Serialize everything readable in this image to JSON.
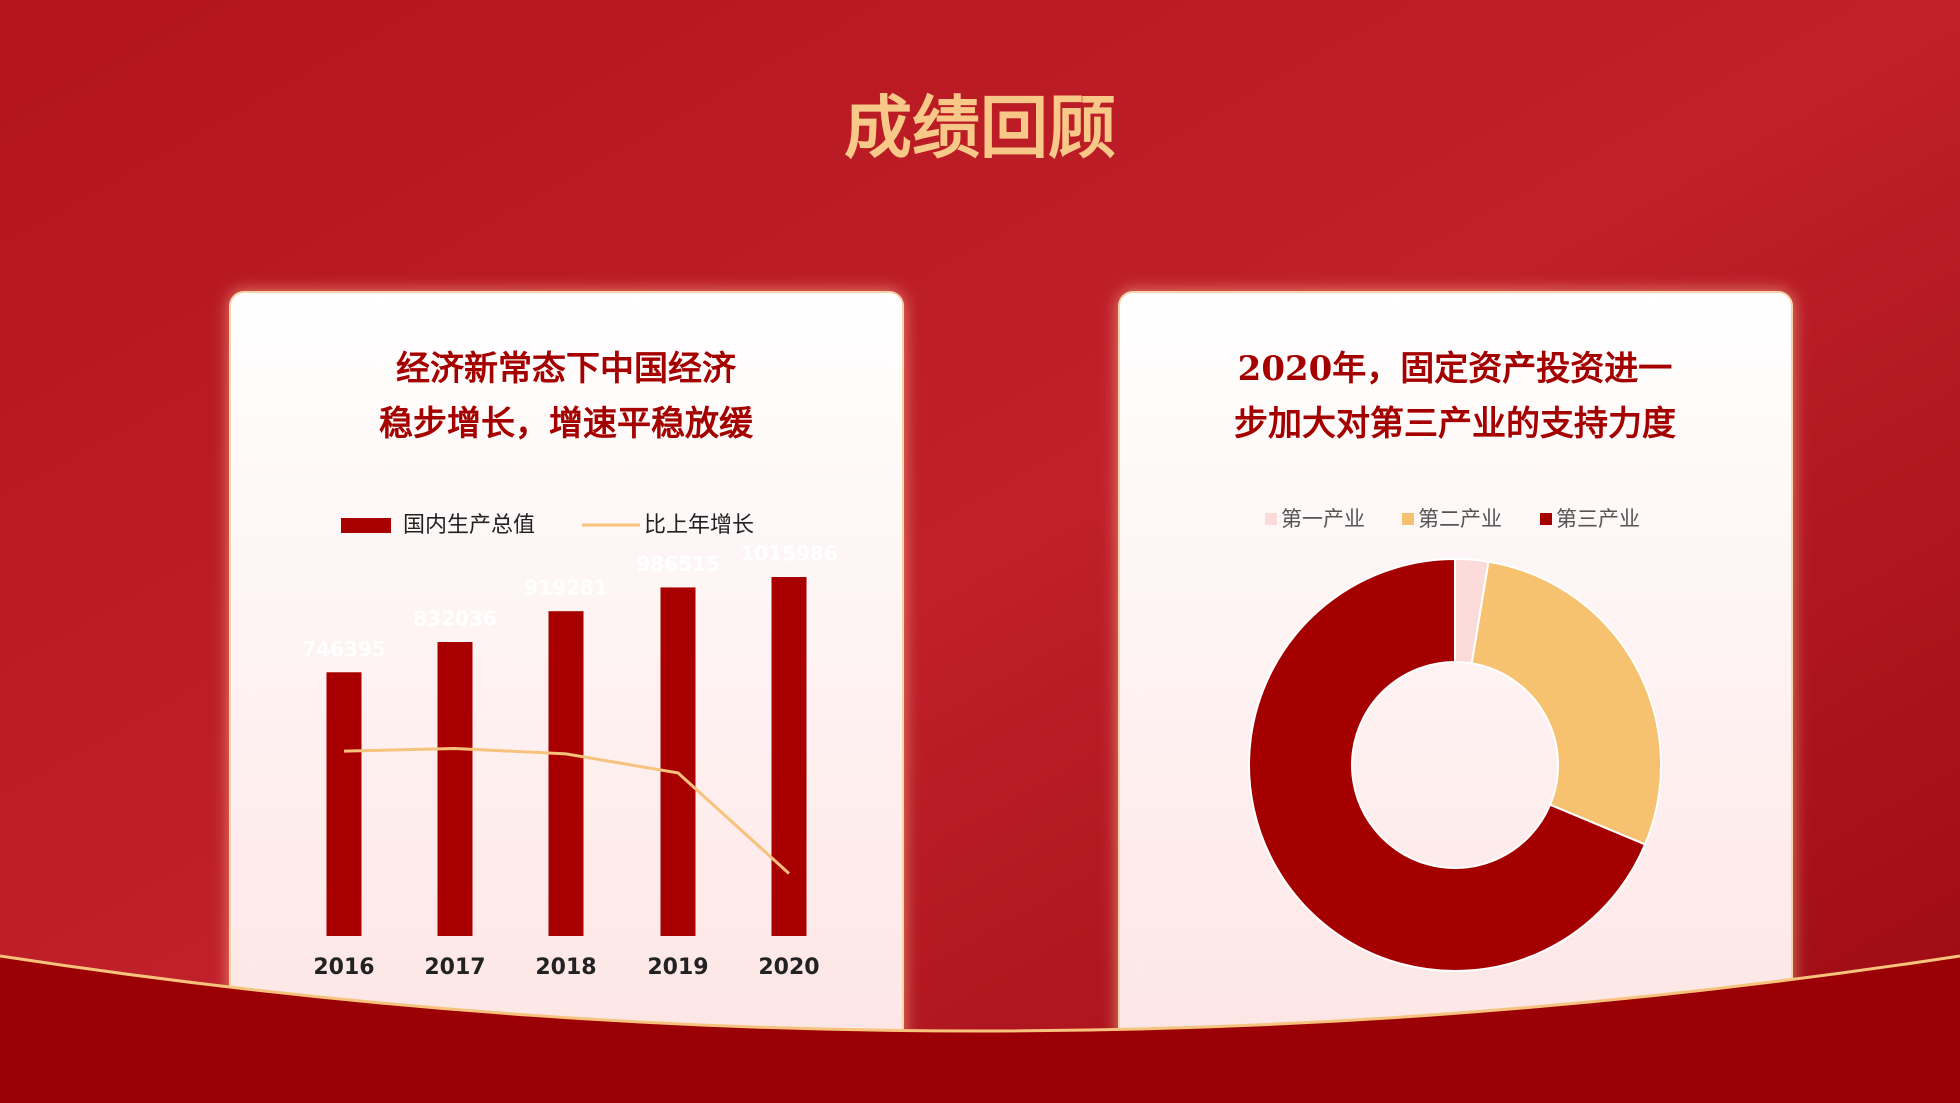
{
  "header": {
    "title": "成绩回顾"
  },
  "chart_data": [
    {
      "type": "bar",
      "title": [
        "经济新常态下中国经济",
        "稳步增长，增速平稳放缓"
      ],
      "categories": [
        "2016",
        "2017",
        "2018",
        "2019",
        "2020"
      ],
      "series": [
        {
          "name": "国内生产总值",
          "type": "bar",
          "color": "#a80000",
          "values": [
            746395,
            832036,
            919281,
            986515,
            1015986
          ]
        },
        {
          "name": "比上年增长",
          "type": "line",
          "axis": "y2",
          "color": "#f7c27c",
          "values": [
            6.8,
            6.9,
            6.7,
            6.0,
            2.3
          ]
        }
      ],
      "ylim": [
        0,
        1200000
      ],
      "y2lim": [
        0,
        15.6
      ],
      "grid": false,
      "legend": "top"
    },
    {
      "type": "pie",
      "title": [
        "2020年，固定资产投资进一",
        "步加大对第三产业的支持力度"
      ],
      "categories": [
        "第一产业",
        "第二产业",
        "第三产业"
      ],
      "values": [
        2.6,
        28.7,
        68.7
      ],
      "colors": [
        "#fbdada",
        "#f7c270",
        "#a50000"
      ],
      "legend": "top"
    }
  ]
}
